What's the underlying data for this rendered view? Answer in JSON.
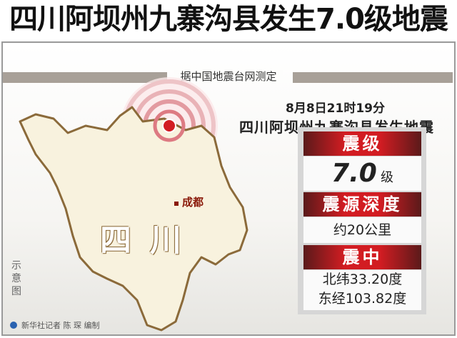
{
  "title": "四川阿坝州九寨沟县发生7.0级地震",
  "source": "据中国地震台网测定",
  "event": {
    "time": "8月8日21时19分",
    "place": "四川阿坝州九寨沟县发生地震"
  },
  "map": {
    "region_label": "四川",
    "city_label": "成都",
    "schematic_label": "示意图",
    "colors": {
      "land": "#f8f2de",
      "border": "#8b6a3a",
      "epicenter": "#d21c22",
      "rings": "#e8b8bc"
    }
  },
  "info": {
    "magnitude_header": "震级",
    "magnitude_value": "7.0",
    "magnitude_unit": "级",
    "depth_header": "震源深度",
    "depth_value": "约20公里",
    "epicenter_header": "震中",
    "latitude": "北纬33.20度",
    "longitude": "东经103.82度"
  },
  "credit": "新华社记者 陈 琛 编制"
}
